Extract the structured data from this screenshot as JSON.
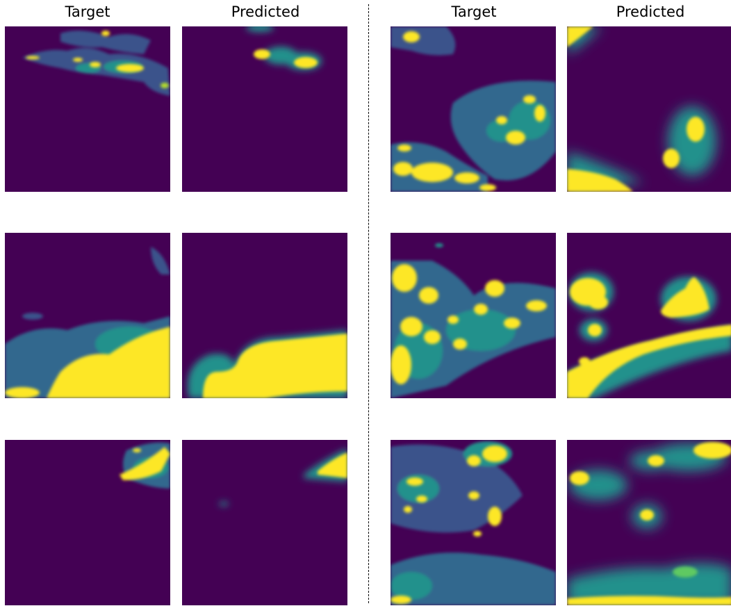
{
  "left_group": {
    "col1_title": "Target",
    "col2_title": "Predicted"
  },
  "right_group": {
    "col1_title": "Target",
    "col2_title": "Predicted"
  },
  "colormap": {
    "name": "viridis",
    "low": "#440154",
    "mid": "#21918c",
    "high": "#fde725"
  },
  "rows": [
    {
      "left": [
        "target",
        "predicted"
      ],
      "right": [
        "target",
        "predicted"
      ]
    },
    {
      "left": [
        "target",
        "predicted"
      ],
      "right": [
        "target",
        "predicted"
      ]
    },
    {
      "left": [
        "target",
        "predicted"
      ],
      "right": [
        "target",
        "predicted"
      ]
    }
  ]
}
